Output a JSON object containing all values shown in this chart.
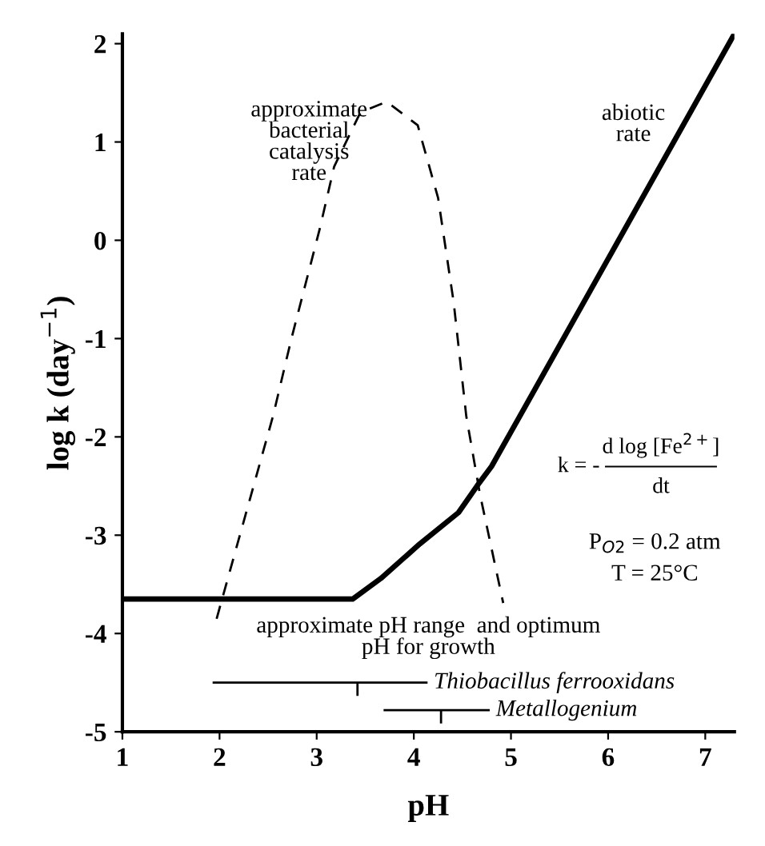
{
  "chart_data": {
    "type": "line",
    "xlabel": "pH",
    "ylabel": "log k (day$^{−1}$)",
    "xlim": [
      1,
      7.3
    ],
    "xticks": [
      1,
      2,
      3,
      4,
      5,
      6,
      7
    ],
    "ylim": [
      -5,
      2.1
    ],
    "yticks": [
      -5,
      -4,
      -3,
      -2,
      -1,
      0,
      1,
      2
    ],
    "grid": false,
    "color": "#000000",
    "series": [
      {
        "name": "abiotic rate",
        "line_style": "solid",
        "x": [
          1,
          3.37,
          3.66,
          4.06,
          4.46,
          4.65,
          4.8,
          5.0,
          7.3
        ],
        "values": [
          -3.65,
          -3.65,
          -3.44,
          -3.09,
          -2.77,
          -2.5,
          -2.3,
          -1.95,
          2.1
        ]
      },
      {
        "name": "approximate bacterial catalysis rate",
        "line_style": "dashed",
        "x": [
          1.97,
          2.55,
          2.74,
          3.03,
          3.18,
          3.45,
          3.72,
          4.04,
          4.25,
          4.41,
          4.54,
          4.68,
          4.92
        ],
        "values": [
          -3.85,
          -1.79,
          -1.0,
          0.11,
          0.75,
          1.3,
          1.41,
          1.17,
          0.43,
          -0.63,
          -1.79,
          -2.58,
          -3.69
        ]
      },
      {
        "name": "Thiobacillus ferrooxidans",
        "line_style": "solid",
        "x": [
          1.94,
          3.42,
          4.13
        ],
        "values": [
          -4.5,
          -4.5,
          -4.5
        ]
      },
      {
        "name": "Metallogenium",
        "line_style": "solid",
        "x": [
          3.7,
          4.28,
          4.77
        ],
        "values": [
          -4.78,
          -4.78,
          -4.78
        ]
      }
    ],
    "annotations": [
      "approximate pH range  and optimum\npH for growth",
      "k = -",
      "d log [Fe$^{2+}$]",
      "dt",
      "P$_{O2}$ = 0.2 atm",
      "T = 25°C"
    ]
  }
}
